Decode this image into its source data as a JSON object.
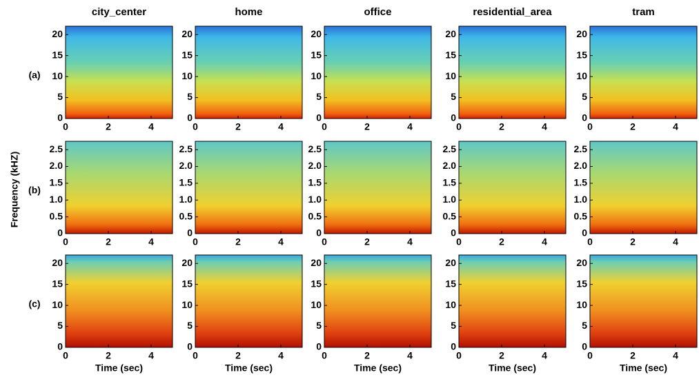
{
  "figure": {
    "columns": [
      "city_center",
      "home",
      "office",
      "residential_area",
      "tram"
    ],
    "rows": [
      {
        "label": "(a)",
        "ylim": [
          0,
          22
        ],
        "yticks": [
          0,
          5,
          10,
          15,
          20
        ]
      },
      {
        "label": "(b)",
        "ylim": [
          0,
          2.75
        ],
        "yticks": [
          0,
          0.5,
          {
            "value": 1,
            "label": "1.0"
          },
          1.5,
          {
            "value": 2,
            "label": "2.0"
          },
          2.5
        ]
      },
      {
        "label": "(c)",
        "ylim": [
          0,
          22
        ],
        "yticks": [
          0,
          5,
          10,
          15,
          20
        ]
      }
    ],
    "xlim": [
      0,
      5
    ],
    "xticks": [
      0,
      2,
      4
    ],
    "xlabel": "Time (sec)",
    "ylabel": "Frequency (kHZ)"
  }
}
